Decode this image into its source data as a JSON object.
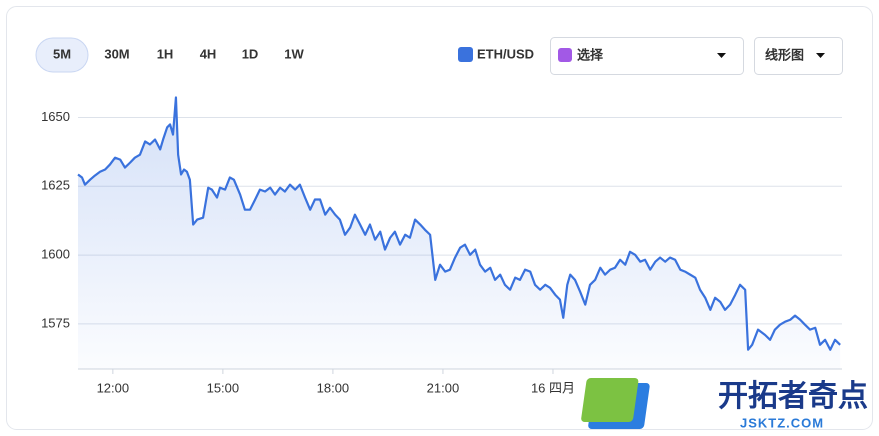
{
  "chart_data": {
    "type": "line",
    "timeframes": [
      "5M",
      "30M",
      "1H",
      "4H",
      "1D",
      "1W"
    ],
    "active_timeframe": 0,
    "compare_select": "选择",
    "compare_color": "#a259e6",
    "chart_type_select": "线形图",
    "watermark": {
      "title": "开拓者奇点",
      "subtitle": "JSKTZ.COM"
    },
    "xlim": [
      11.05,
      31.88
    ],
    "xticks": [
      {
        "value": 12,
        "label": "12:00"
      },
      {
        "value": 15,
        "label": "15:00"
      },
      {
        "value": 18,
        "label": "18:00"
      },
      {
        "value": 21,
        "label": "21:00"
      },
      {
        "value": 24,
        "label": "16 四月"
      }
    ],
    "ylim": [
      1558.6,
      1660
    ],
    "yticks": [
      1575,
      1600,
      1625,
      1650
    ],
    "grid": true,
    "x": [
      11.05,
      11.16,
      11.24,
      11.38,
      11.51,
      11.65,
      11.79,
      11.92,
      12.06,
      12.2,
      12.33,
      12.47,
      12.6,
      12.74,
      12.88,
      13.01,
      13.15,
      13.29,
      13.37,
      13.48,
      13.56,
      13.64,
      13.72,
      13.78,
      13.86,
      13.94,
      14.02,
      14.1,
      14.19,
      14.3,
      14.46,
      14.6,
      14.7,
      14.84,
      14.92,
      15.06,
      15.19,
      15.3,
      15.47,
      15.6,
      15.74,
      15.88,
      16.01,
      16.15,
      16.29,
      16.42,
      16.56,
      16.69,
      16.83,
      16.97,
      17.1,
      17.24,
      17.38,
      17.51,
      17.65,
      17.79,
      17.92,
      18.06,
      18.19,
      18.33,
      18.47,
      18.6,
      18.74,
      18.88,
      19.01,
      19.15,
      19.29,
      19.42,
      19.56,
      19.69,
      19.83,
      19.97,
      20.1,
      20.24,
      20.38,
      20.51,
      20.65,
      20.79,
      20.92,
      21.06,
      21.19,
      21.33,
      21.47,
      21.6,
      21.74,
      21.88,
      22.01,
      22.15,
      22.29,
      22.42,
      22.56,
      22.69,
      22.83,
      22.97,
      23.1,
      23.24,
      23.38,
      23.51,
      23.65,
      23.79,
      23.92,
      24.06,
      24.19,
      24.28,
      24.39,
      24.47,
      24.6,
      24.74,
      24.88,
      25.01,
      25.15,
      25.29,
      25.42,
      25.56,
      25.69,
      25.83,
      25.97,
      26.1,
      26.24,
      26.38,
      26.51,
      26.65,
      26.79,
      26.92,
      27.06,
      27.19,
      27.33,
      27.47,
      27.6,
      27.74,
      27.88,
      28.01,
      28.15,
      28.29,
      28.42,
      28.56,
      28.69,
      28.83,
      28.97,
      29.1,
      29.24,
      29.32,
      29.43,
      29.59,
      29.78,
      29.92,
      30.05,
      30.19,
      30.33,
      30.47,
      30.6,
      30.74,
      30.87,
      31.01,
      31.15,
      31.28,
      31.42,
      31.56,
      31.69,
      31.83
    ],
    "series": [
      {
        "name": "ETH/USD",
        "color": "#3a72dd",
        "values": [
          1629.3,
          1628.2,
          1625.6,
          1627.4,
          1628.9,
          1630.3,
          1631.1,
          1632.9,
          1635.4,
          1634.7,
          1631.8,
          1633.6,
          1635.4,
          1636.5,
          1641.3,
          1640.2,
          1642.0,
          1638.4,
          1642.0,
          1646.4,
          1647.5,
          1643.8,
          1657.3,
          1636.5,
          1629.3,
          1631.1,
          1630.3,
          1627.4,
          1611.1,
          1612.9,
          1613.6,
          1624.5,
          1623.8,
          1620.9,
          1624.5,
          1623.8,
          1628.2,
          1627.4,
          1622.0,
          1616.5,
          1616.5,
          1620.2,
          1623.8,
          1623.1,
          1624.5,
          1622.0,
          1624.5,
          1623.1,
          1625.6,
          1623.8,
          1625.6,
          1620.9,
          1616.5,
          1620.2,
          1620.2,
          1614.7,
          1617.2,
          1614.7,
          1612.9,
          1607.4,
          1610.0,
          1614.7,
          1611.1,
          1607.4,
          1611.1,
          1605.6,
          1608.5,
          1602.0,
          1606.3,
          1608.5,
          1603.8,
          1607.4,
          1606.3,
          1612.9,
          1611.1,
          1609.2,
          1607.4,
          1591.0,
          1596.5,
          1594.0,
          1594.7,
          1599.1,
          1602.7,
          1603.8,
          1600.1,
          1602.0,
          1596.5,
          1594.0,
          1595.4,
          1591.0,
          1592.9,
          1589.2,
          1587.4,
          1591.8,
          1591.0,
          1594.7,
          1594.0,
          1589.2,
          1587.4,
          1589.2,
          1588.1,
          1585.6,
          1583.8,
          1577.2,
          1589.2,
          1592.9,
          1591.0,
          1586.7,
          1582.0,
          1589.2,
          1591.0,
          1595.4,
          1592.9,
          1594.7,
          1595.4,
          1598.3,
          1596.5,
          1601.2,
          1600.1,
          1597.6,
          1598.3,
          1594.7,
          1597.6,
          1599.1,
          1597.6,
          1599.1,
          1598.3,
          1594.7,
          1594.0,
          1592.9,
          1591.8,
          1587.4,
          1584.5,
          1580.1,
          1584.5,
          1583.0,
          1580.1,
          1582.0,
          1585.6,
          1589.2,
          1587.4,
          1565.6,
          1567.4,
          1572.9,
          1571.0,
          1569.2,
          1572.9,
          1574.7,
          1575.8,
          1576.5,
          1578.0,
          1576.5,
          1574.7,
          1572.9,
          1573.6,
          1567.4,
          1569.2,
          1565.6,
          1569.2,
          1567.4
        ]
      }
    ]
  }
}
